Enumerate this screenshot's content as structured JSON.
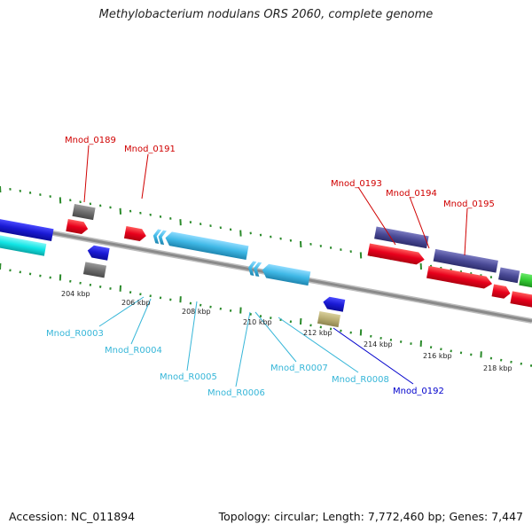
{
  "title": "Methylobacterium nodulans ORS 2060, complete genome",
  "footer": {
    "accession": "Accession: NC_011894",
    "topology": "Topology: circular; Length: 7,772,460 bp; Genes: 7,447"
  },
  "colors": {
    "backbone": "#8a8a8a",
    "cds": "#e8001c",
    "gene_blue": "#1a1ad4",
    "gene_gray": "#6e6e6e",
    "gene_purple": "#4a4a96",
    "gene_tan": "#b8ad72",
    "gene_green": "#33cc33",
    "gene_cyan": "#11e5e5",
    "rna": "#3fb8e6",
    "tick_green": "#2a8a2a",
    "label_red": "#d00000",
    "label_cyan": "#36b6d8",
    "label_blue": "#0000cc"
  },
  "scale": {
    "ticks": [
      "204 kbp",
      "206 kbp",
      "208 kbp",
      "210 kbp",
      "212 kbp",
      "214 kbp",
      "216 kbp",
      "218 kbp"
    ]
  },
  "gene_labels": {
    "mnod_0189": "Mnod_0189",
    "mnod_0191": "Mnod_0191",
    "mnod_0193": "Mnod_0193",
    "mnod_0194": "Mnod_0194",
    "mnod_0195": "Mnod_0195",
    "mnod_0192": "Mnod_0192",
    "mnod_r0003": "Mnod_R0003",
    "mnod_r0004": "Mnod_R0004",
    "mnod_r0005": "Mnod_R0005",
    "mnod_r0006": "Mnod_R0006",
    "mnod_r0007": "Mnod_R0007",
    "mnod_r0008": "Mnod_R0008"
  }
}
